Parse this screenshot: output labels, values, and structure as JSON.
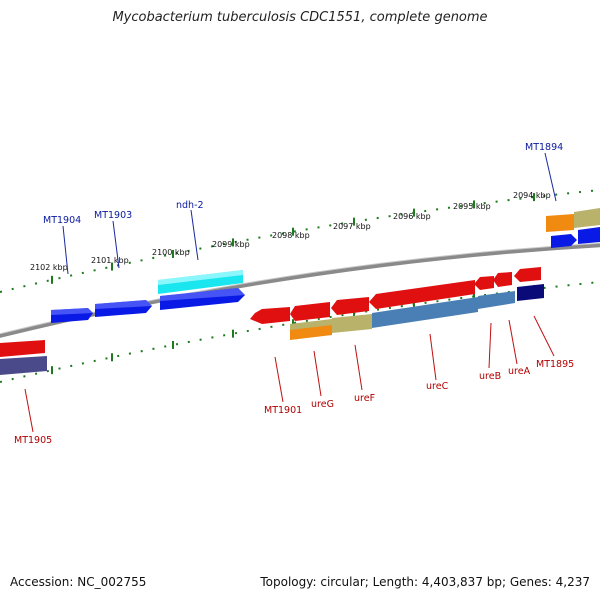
{
  "title": "Mycobacterium tuberculosis CDC1551, complete genome",
  "footer": {
    "accession": "Accession: NC_002755",
    "topology": "Topology: circular; Length: 4,403,837 bp; Genes: 4,237"
  },
  "colors": {
    "backbone": "#8a8a8a",
    "ticks": "#1f7a1f",
    "forward_gene": "#0a1ae6",
    "reverse_gene": "#e01010",
    "forward_label": "#0a1aa0",
    "reverse_label": "#b00000",
    "ndh2": "#1ae6f0",
    "orange": "#f08a10",
    "khaki": "#b8b26a",
    "steelblue": "#4a7fb5",
    "navy": "#0a0a78",
    "slate": "#4a4a8a"
  },
  "scale_labels": [
    {
      "label": "2102 kbp"
    },
    {
      "label": "2101 kbp"
    },
    {
      "label": "2100 kbp"
    },
    {
      "label": "2099 kbp"
    },
    {
      "label": "2098 kbp"
    },
    {
      "label": "2097 kbp"
    },
    {
      "label": "2096 kbp"
    },
    {
      "label": "2095 kbp"
    },
    {
      "label": "2094 kbp"
    }
  ],
  "forward_gene_labels": [
    {
      "label": "MT1904"
    },
    {
      "label": "MT1903"
    },
    {
      "label": "ndh-2"
    },
    {
      "label": "MT1894"
    }
  ],
  "reverse_gene_labels": [
    {
      "label": "MT1905"
    },
    {
      "label": "MT1901"
    },
    {
      "label": "ureG"
    },
    {
      "label": "ureF"
    },
    {
      "label": "ureC"
    },
    {
      "label": "ureB"
    },
    {
      "label": "ureA"
    },
    {
      "label": "MT1895"
    }
  ]
}
